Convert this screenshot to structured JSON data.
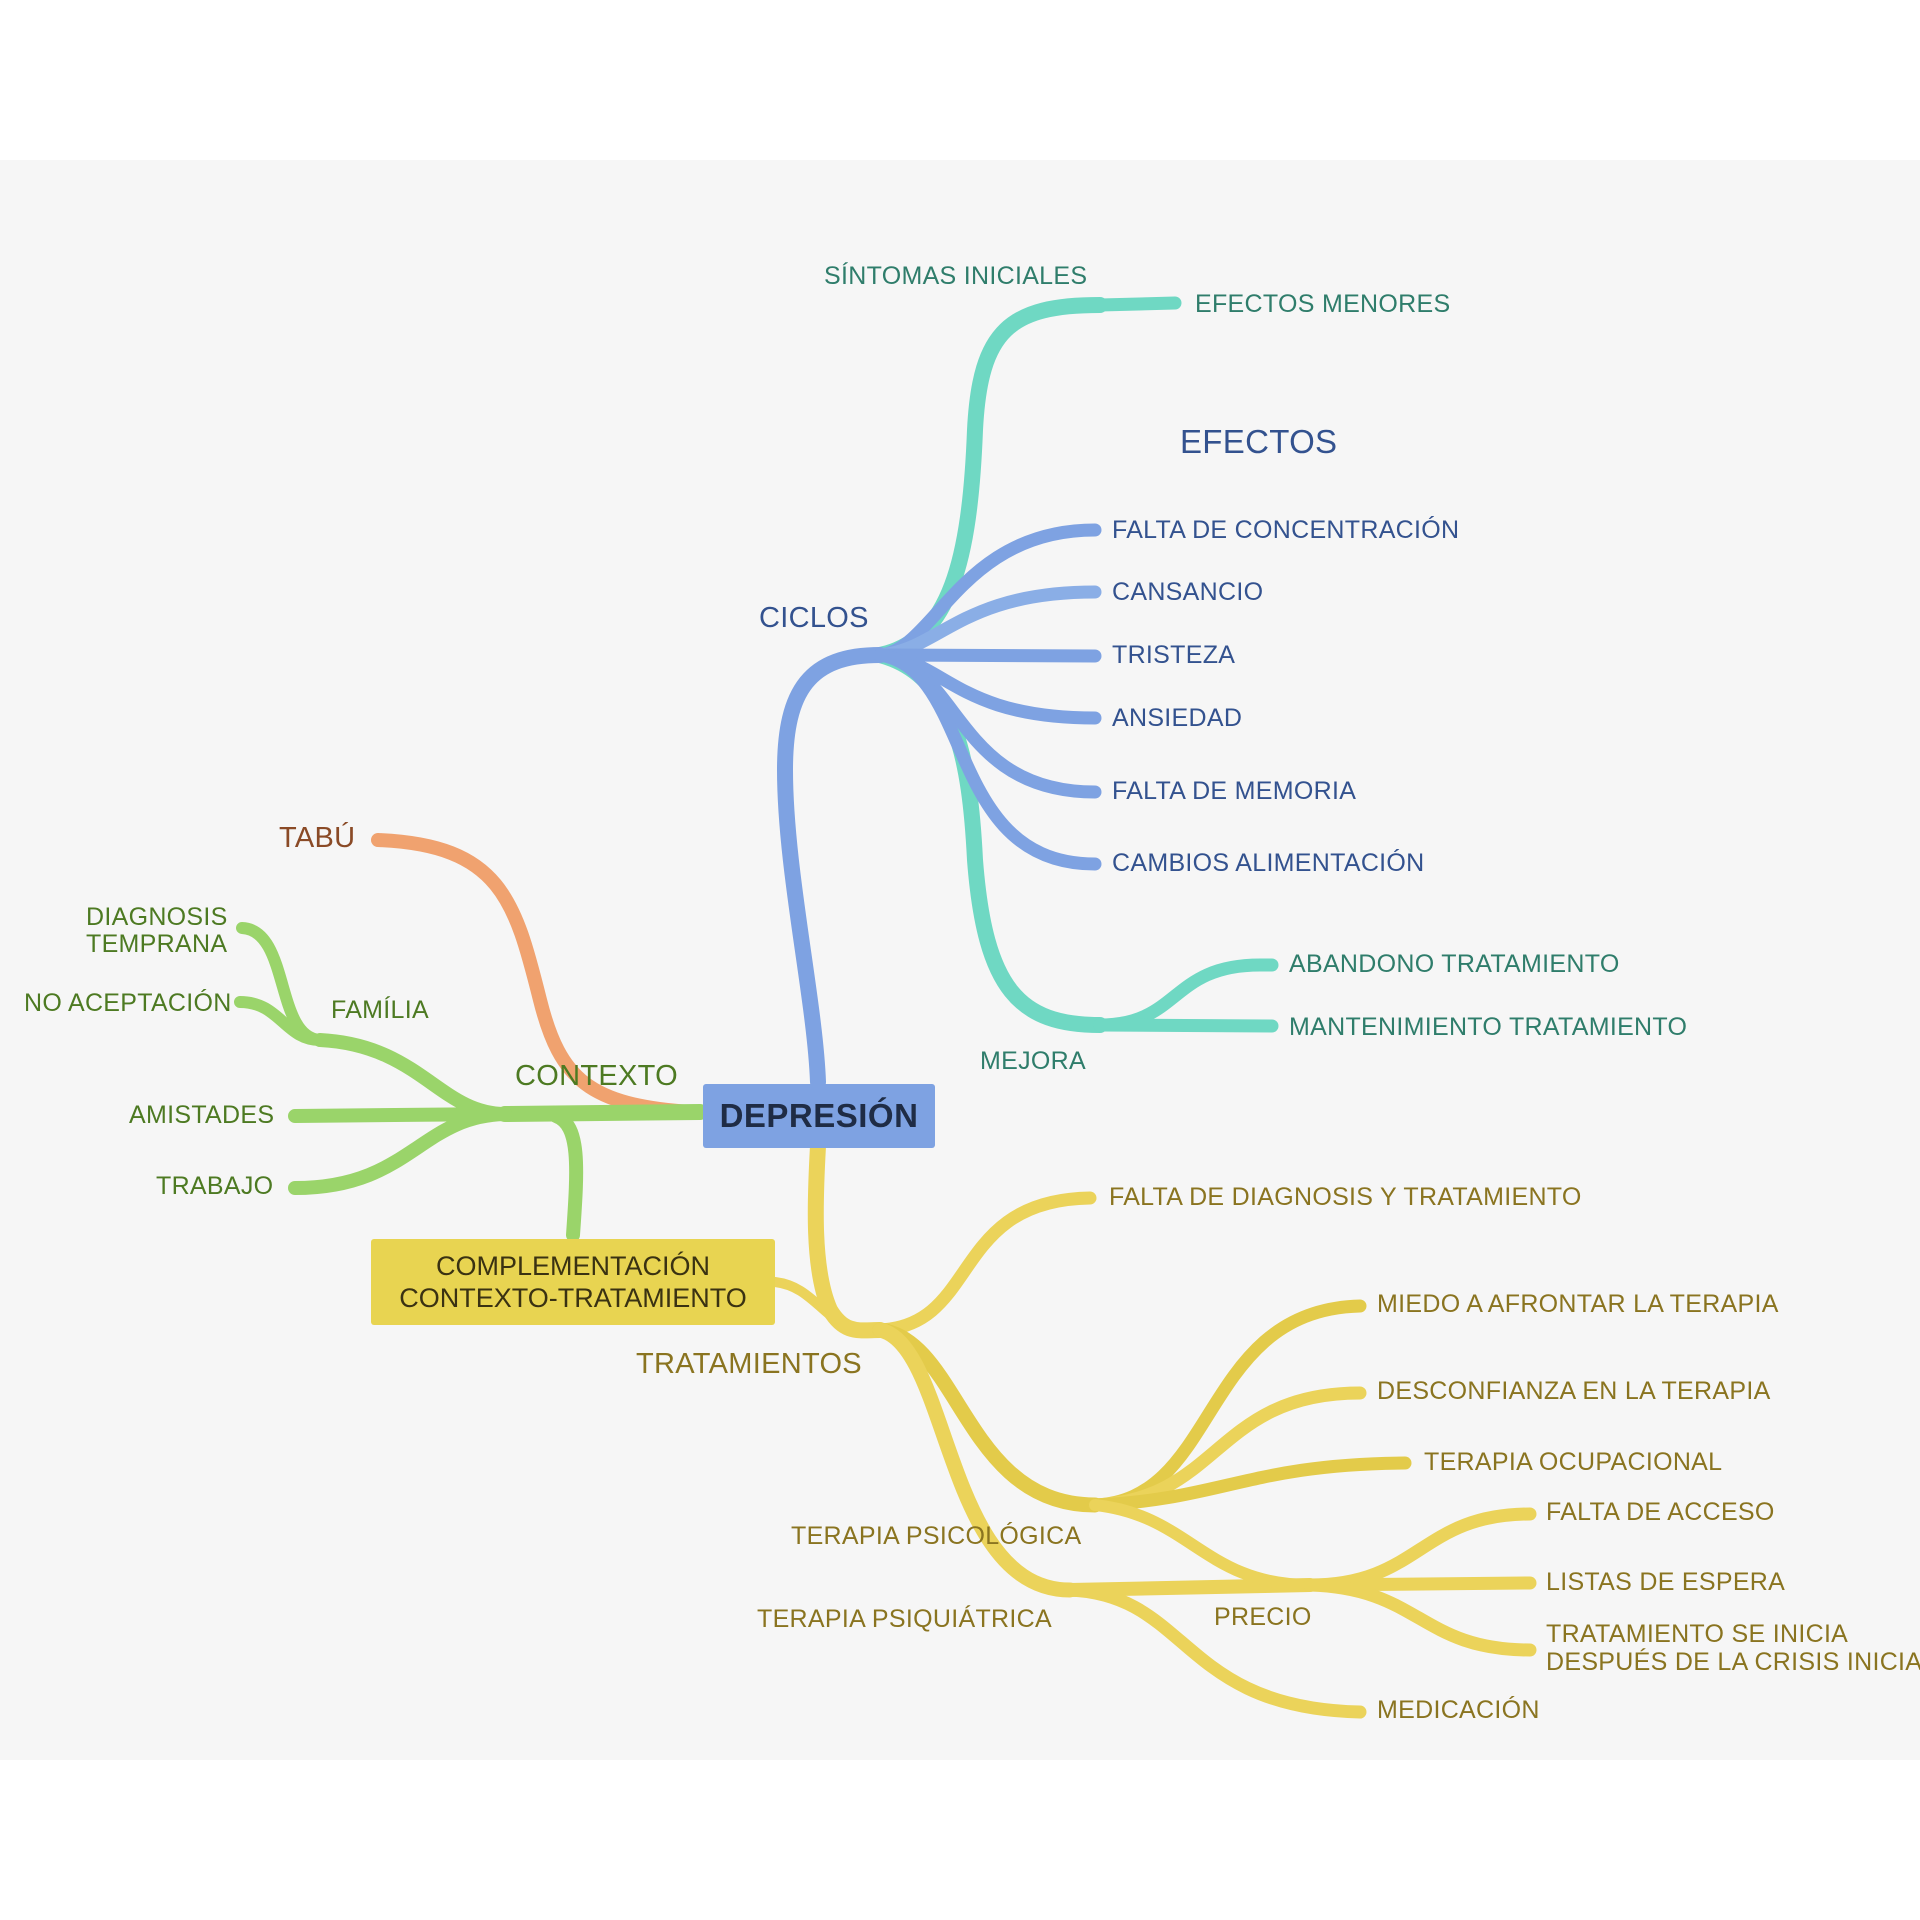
{
  "root": "DEPRESIÓN",
  "colors": {
    "teal": "#6fd8c3",
    "blue": "#7ea2e2",
    "green": "#9ad46a",
    "orange": "#f0a26f",
    "yellow": "#ebd35a"
  },
  "top": {
    "ciclos": "CICLOS",
    "sintomas": "SÍNTOMAS INICIALES",
    "efectos_menores": "EFECTOS MENORES",
    "efectos": "EFECTOS",
    "efectos_items": [
      "FALTA DE CONCENTRACIÓN",
      "CANSANCIO",
      "TRISTEZA",
      "ANSIEDAD",
      "FALTA DE MEMORIA",
      "CAMBIOS ALIMENTACIÓN"
    ],
    "mejora": "MEJORA",
    "mejora_items": [
      "ABANDONO TRATAMIENTO",
      "MANTENIMIENTO TRATAMIENTO"
    ]
  },
  "left": {
    "tabu": "TABÚ",
    "contexto": "CONTEXTO",
    "familia": "FAMÍLIA",
    "familia_items": [
      "DIAGNOSIS",
      "TEMPRANA",
      "NO ACEPTACIÓN"
    ],
    "amistades": "AMISTADES",
    "trabajo": "TRABAJO",
    "complement_lines": [
      "COMPLEMENTACIÓN",
      "CONTEXTO-TRATAMIENTO"
    ]
  },
  "bottom": {
    "tratamientos": "TRATAMIENTOS",
    "falta_diagnosis": "FALTA DE DIAGNOSIS Y TRATAMIENTO",
    "terapia_psicologica": "TERAPIA PSICOLÓGICA",
    "psicologica_items": [
      "MIEDO A AFRONTAR LA TERAPIA",
      "DESCONFIANZA EN LA TERAPIA",
      "TERAPIA OCUPACIONAL"
    ],
    "terapia_psiquiatrica": "TERAPIA PSIQUIÁTRICA",
    "precio": "PRECIO",
    "precio_items": [
      "FALTA DE ACCESO",
      "LISTAS DE ESPERA",
      "TRATAMIENTO SE INICIA",
      "DESPUÉS DE LA CRISIS INICIAL"
    ],
    "medicacion": "MEDICACIÓN"
  }
}
